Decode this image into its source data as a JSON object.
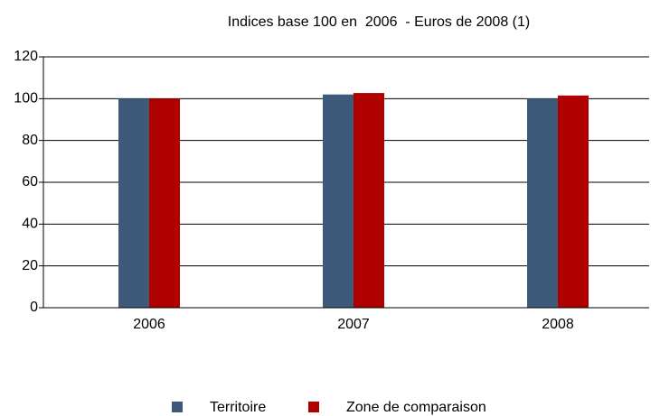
{
  "chart_data": {
    "type": "bar",
    "title": "Indices base 100 en  2006  - Euros de 2008 (1)",
    "categories": [
      "2006",
      "2007",
      "2008"
    ],
    "series": [
      {
        "name": "Territoire",
        "color": "#3d5a7a",
        "values": [
          100,
          102,
          100
        ]
      },
      {
        "name": "Zone de comparaison",
        "color": "#b00000",
        "values": [
          100,
          102.7,
          101.5
        ]
      }
    ],
    "ylim": [
      0,
      120
    ],
    "yticks": [
      0,
      20,
      40,
      60,
      80,
      100,
      120
    ],
    "grid": true,
    "legend": "bottom"
  }
}
